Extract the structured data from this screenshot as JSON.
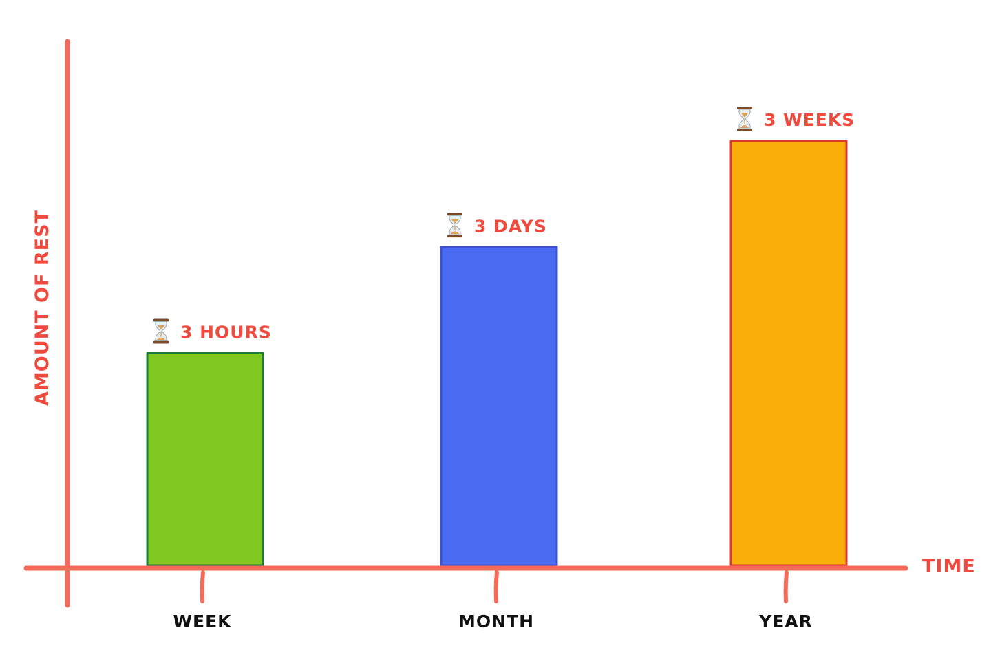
{
  "chart_data": {
    "type": "bar",
    "title": "",
    "xlabel": "TIME",
    "ylabel": "AMOUNT OF REST",
    "categories": [
      "WEEK",
      "MONTH",
      "YEAR"
    ],
    "values": [
      3,
      4.5,
      6
    ],
    "ylim": [
      0,
      7.5
    ],
    "data_labels": [
      "3 HOURS",
      "3 DAYS",
      "3 WEEKS"
    ],
    "data_label_icon": "hourglass-icon",
    "bar_colors": [
      "#80c71f",
      "#4a6cf2",
      "#f9ae0a"
    ],
    "bar_outline_colors": [
      "#1e7a3c",
      "#3d4fcf",
      "#d93a2b"
    ],
    "axis_color": "#f26b5b",
    "label_color": "#f04a3e",
    "grid": false,
    "legend": "none"
  }
}
